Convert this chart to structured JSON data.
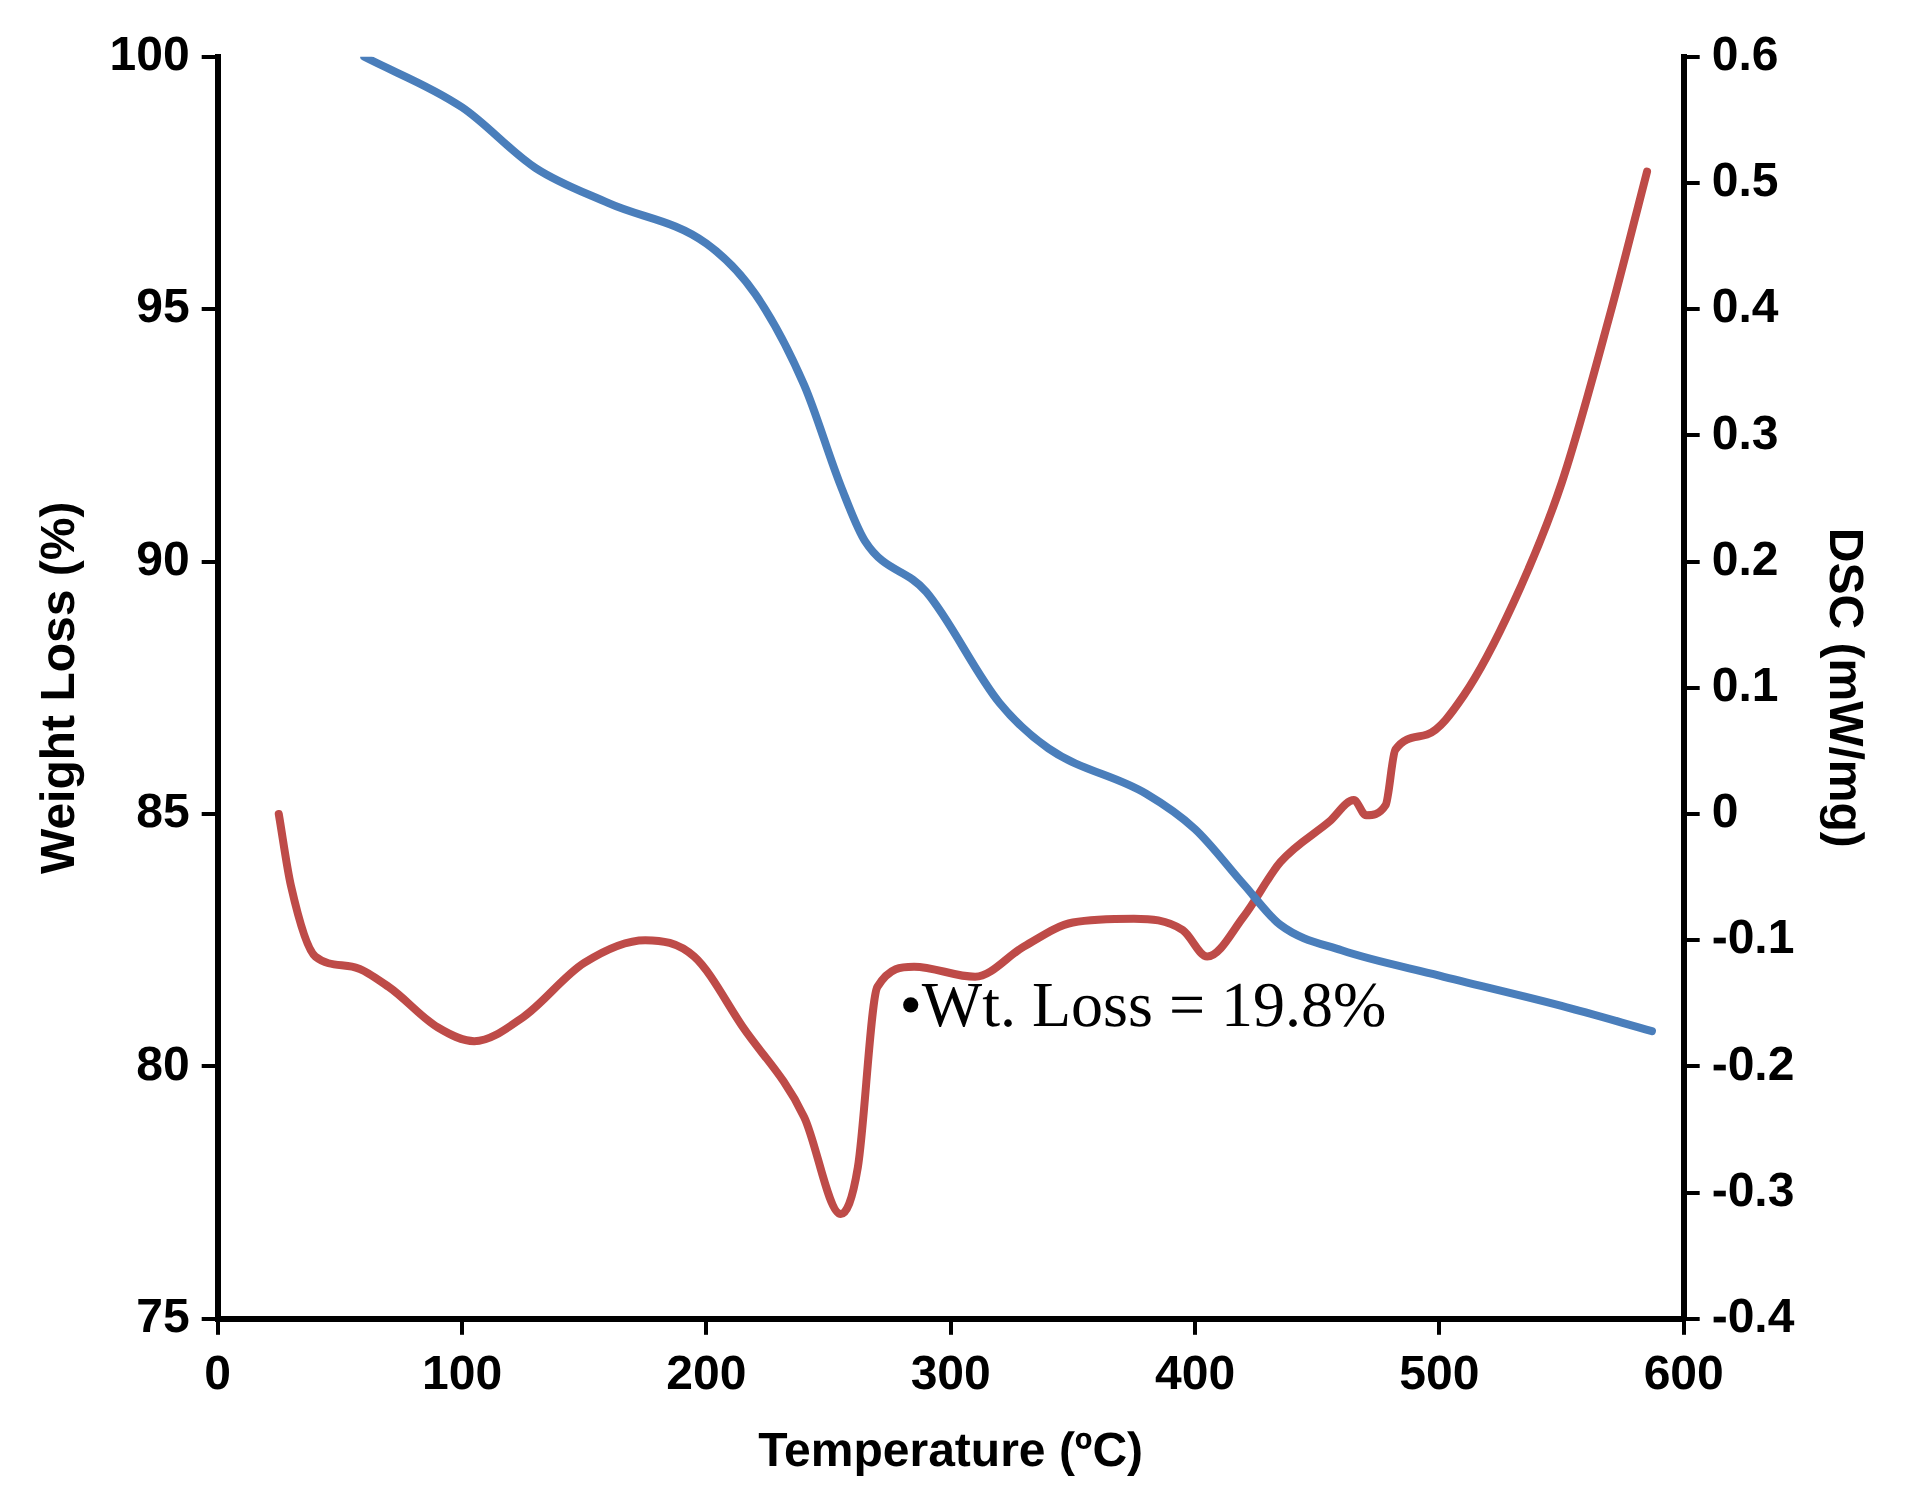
{
  "chart_data": {
    "type": "line",
    "xlabel": "Temperature (ºC)",
    "ylabel": "Weight Loss (%)",
    "y2label": "DSC (mW/mg)",
    "xlim": [
      0,
      600
    ],
    "xticks": [
      0,
      100,
      200,
      300,
      400,
      500,
      600
    ],
    "ylim": [
      75,
      100
    ],
    "yticks": [
      75,
      80,
      85,
      90,
      95,
      100
    ],
    "y2lim": [
      -0.4,
      0.6
    ],
    "y2ticks": [
      -0.4,
      -0.3,
      -0.2,
      -0.1,
      0,
      0.1,
      0.2,
      0.3,
      0.4,
      0.5,
      0.6
    ],
    "grid": false,
    "legend": false,
    "marker": "none",
    "line_style": "solid",
    "annotations": [
      "•Wt. Loss = 19.8%"
    ],
    "series": [
      {
        "color": "#4a7ebb",
        "x": [
          60,
          100,
          130,
          160,
          200,
          220,
          240,
          255,
          265,
          290,
          320,
          340,
          380,
          400,
          420,
          435,
          460,
          500,
          550,
          587
        ],
        "values": [
          100,
          99.0,
          97.8,
          97.1,
          96.3,
          95.3,
          93.5,
          91.5,
          90.4,
          89.4,
          87.2,
          86.3,
          85.4,
          84.7,
          83.6,
          82.8,
          82.3,
          81.8,
          81.2,
          80.7
        ]
      },
      {
        "color": "#be4b48",
        "axis": "y2",
        "x": [
          25,
          30,
          40,
          55,
          70,
          90,
          105,
          125,
          150,
          175,
          195,
          215,
          240,
          255,
          262,
          270,
          285,
          310,
          330,
          350,
          375,
          395,
          405,
          420,
          435,
          455,
          465,
          470,
          478,
          482,
          495,
          510,
          530,
          550,
          570,
          585
        ],
        "values": [
          0,
          -0.057,
          -0.113,
          -0.121,
          -0.137,
          -0.169,
          -0.18,
          -0.161,
          -0.118,
          -0.1,
          -0.113,
          -0.169,
          -0.24,
          -0.317,
          -0.28,
          -0.137,
          -0.121,
          -0.129,
          -0.105,
          -0.086,
          -0.083,
          -0.092,
          -0.113,
          -0.081,
          -0.038,
          -0.006,
          0.011,
          -0.001,
          0.007,
          0.051,
          0.063,
          0.094,
          0.166,
          0.262,
          0.397,
          0.509
        ]
      }
    ]
  }
}
